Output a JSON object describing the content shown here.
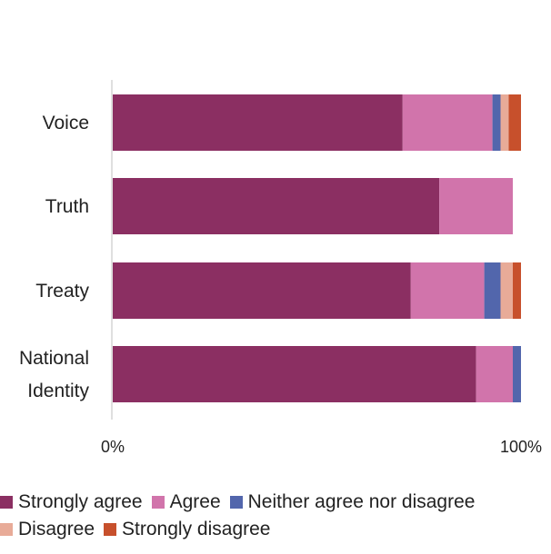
{
  "chart_data": {
    "type": "bar",
    "orientation": "horizontal",
    "stacked": true,
    "categories": [
      "Voice",
      "Truth",
      "Treaty",
      "National Identity"
    ],
    "series": [
      {
        "name": "Strongly agree",
        "color": "#8b2f62",
        "values": [
          71,
          80,
          73,
          89
        ]
      },
      {
        "name": "Agree",
        "color": "#d174ab",
        "values": [
          22,
          18,
          18,
          9
        ]
      },
      {
        "name": "Neither agree nor disagree",
        "color": "#5266ac",
        "values": [
          2,
          0,
          4,
          2
        ]
      },
      {
        "name": "Disagree",
        "color": "#e8ab98",
        "values": [
          2,
          0,
          3,
          0
        ]
      },
      {
        "name": "Strongly disagree",
        "color": "#c7502c",
        "values": [
          3,
          0,
          2,
          0
        ]
      }
    ],
    "xlim": [
      0,
      100
    ],
    "xticks": [
      "0%",
      "100%"
    ],
    "grid": false,
    "legend_position": "bottom"
  }
}
